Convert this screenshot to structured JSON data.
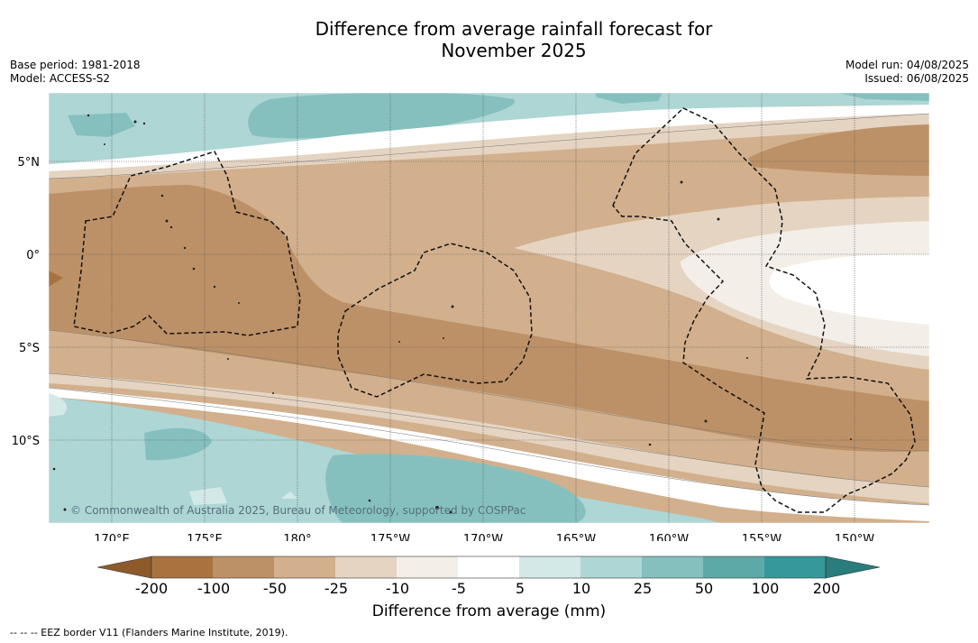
{
  "title_line1": "Difference from average rainfall forecast for",
  "title_line2": "November 2025",
  "meta_left": {
    "base_period": "Base period: 1981-2018",
    "model": "Model: ACCESS-S2"
  },
  "meta_right": {
    "model_run": "Model run: 04/08/2025",
    "issued": "Issued: 06/08/2025"
  },
  "map": {
    "lat_ticks": [
      "5°N",
      "0°",
      "5°S",
      "10°S"
    ],
    "lon_ticks": [
      "170°E",
      "175°E",
      "180°",
      "175°W",
      "170°W",
      "165°W",
      "160°W",
      "155°W",
      "150°W"
    ],
    "credit": "© Commonwealth of Australia 2025, Bureau of Meteorology, supported by COSPPac"
  },
  "colorbar": {
    "labels": [
      "-200",
      "-100",
      "-50",
      "-25",
      "-10",
      "-5",
      "5",
      "10",
      "25",
      "50",
      "100",
      "200"
    ],
    "colors": [
      "#a8733e",
      "#bd9167",
      "#d2b08d",
      "#e5d4c2",
      "#f3eee8",
      "#ffffff",
      "#d3e9e7",
      "#aed6d5",
      "#85c0bf",
      "#5da9a8",
      "#36989a"
    ],
    "under_color": "#8f5a2a",
    "over_color": "#2a7c7d",
    "title": "Difference from average (mm)"
  },
  "legend_note": "-- -- -- EEZ border V11 (Flanders Marine Institute, 2019)."
}
